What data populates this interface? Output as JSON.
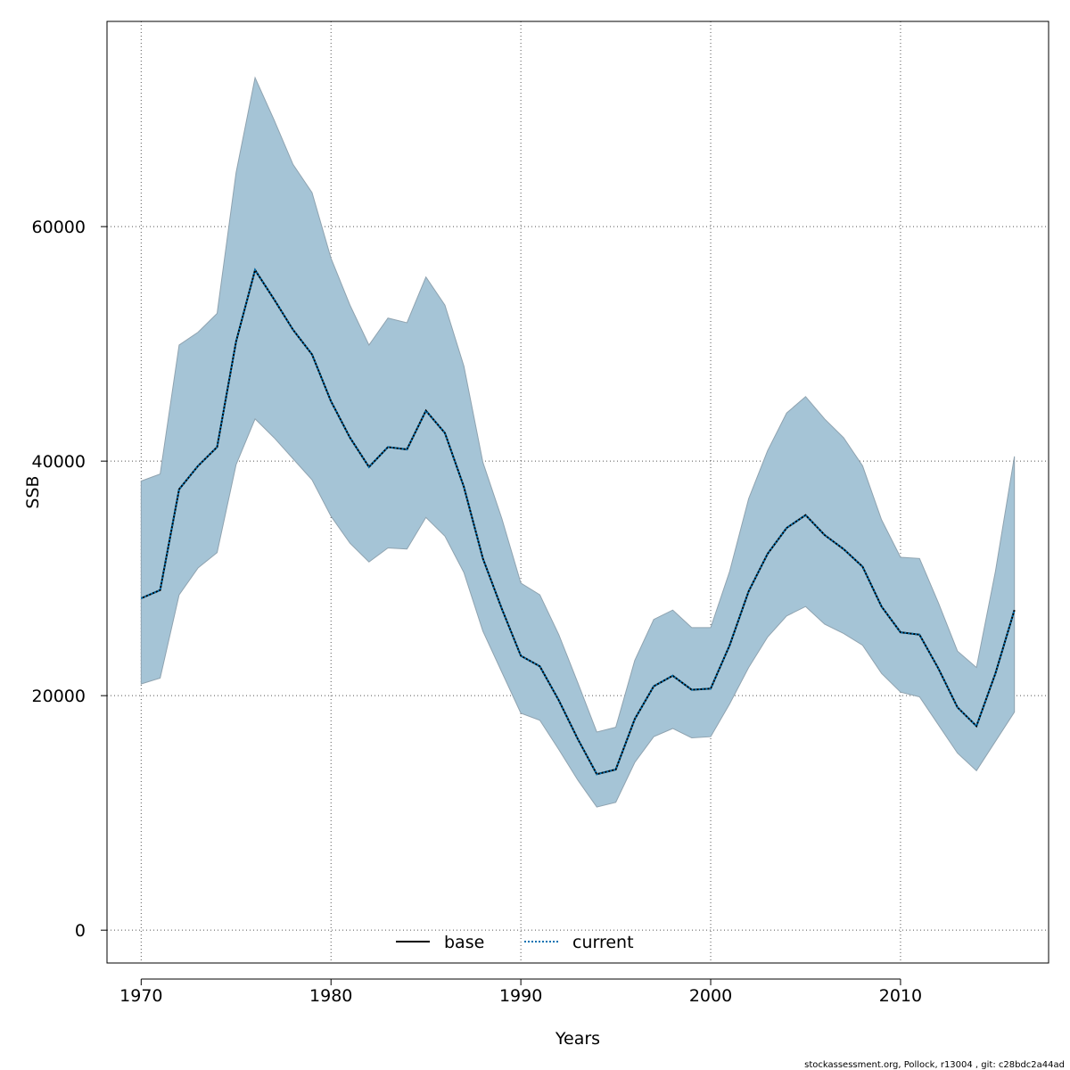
{
  "chart_data": {
    "type": "line",
    "xlabel": "Years",
    "ylabel": "SSB",
    "xlim": [
      1968.2,
      2017.8
    ],
    "ylim": [
      -2800,
      77500
    ],
    "x_ticks": [
      1970,
      1980,
      1990,
      2000,
      2010
    ],
    "y_ticks": [
      0,
      20000,
      40000,
      60000
    ],
    "grid": true,
    "legend_position": "bottom-center",
    "colors": {
      "band_fill": "#a5c4d6",
      "band_stroke": "#8fa3b0",
      "base_line": "#000000",
      "current_line": "#0072b2",
      "grid": "#555555"
    },
    "x": [
      1970,
      1971,
      1972,
      1973,
      1974,
      1975,
      1976,
      1977,
      1978,
      1979,
      1980,
      1981,
      1982,
      1983,
      1984,
      1985,
      1986,
      1987,
      1988,
      1989,
      1990,
      1991,
      1992,
      1993,
      1994,
      1995,
      1996,
      1997,
      1998,
      1999,
      2000,
      2001,
      2002,
      2003,
      2004,
      2005,
      2006,
      2007,
      2008,
      2009,
      2010,
      2011,
      2012,
      2013,
      2014,
      2015,
      2016
    ],
    "band": {
      "upper": [
        38300,
        38900,
        49900,
        51000,
        52600,
        64600,
        72700,
        69100,
        65300,
        62900,
        57300,
        53300,
        49900,
        52200,
        51800,
        55700,
        53300,
        48100,
        39900,
        35100,
        29600,
        28600,
        25200,
        21100,
        16900,
        17300,
        23000,
        26500,
        27300,
        25800,
        25800,
        30600,
        36800,
        40900,
        44100,
        45500,
        43600,
        42000,
        39600,
        35000,
        31800,
        31700,
        27900,
        23800,
        22400,
        30600,
        40400
      ],
      "lower": [
        21000,
        21500,
        28600,
        30900,
        32200,
        39700,
        43600,
        42000,
        40200,
        38400,
        35300,
        33000,
        31400,
        32600,
        32500,
        35200,
        33600,
        30500,
        25500,
        22000,
        18500,
        17900,
        15400,
        12800,
        10500,
        10900,
        14300,
        16500,
        17200,
        16400,
        16500,
        19300,
        22400,
        25000,
        26800,
        27600,
        26100,
        25300,
        24300,
        21900,
        20300,
        19900,
        17500,
        15100,
        13600,
        16100,
        18600
      ]
    },
    "series": [
      {
        "name": "base",
        "style": "solid",
        "values": [
          28300,
          29000,
          37600,
          39600,
          41200,
          50200,
          56300,
          53800,
          51200,
          49100,
          45100,
          42000,
          39500,
          41200,
          41000,
          44300,
          42400,
          37800,
          31700,
          27400,
          23400,
          22500,
          19600,
          16300,
          13300,
          13700,
          18000,
          20800,
          21700,
          20500,
          20600,
          24300,
          28900,
          32100,
          34300,
          35400,
          33700,
          32500,
          31000,
          27600,
          25400,
          25200,
          22300,
          19000,
          17400,
          21900,
          27300
        ]
      },
      {
        "name": "current",
        "style": "dotted",
        "values": [
          28300,
          29000,
          37600,
          39600,
          41200,
          50200,
          56300,
          53800,
          51200,
          49100,
          45100,
          42000,
          39500,
          41200,
          41000,
          44300,
          42400,
          37800,
          31700,
          27400,
          23400,
          22500,
          19600,
          16300,
          13300,
          13700,
          18000,
          20800,
          21700,
          20500,
          20600,
          24300,
          28900,
          32100,
          34300,
          35400,
          33700,
          32500,
          31000,
          27600,
          25400,
          25200,
          22300,
          19000,
          17400,
          21900,
          27300
        ]
      }
    ]
  },
  "footer": "stockassessment.org, Pollock, r13004 , git: c28bdc2a44ad"
}
